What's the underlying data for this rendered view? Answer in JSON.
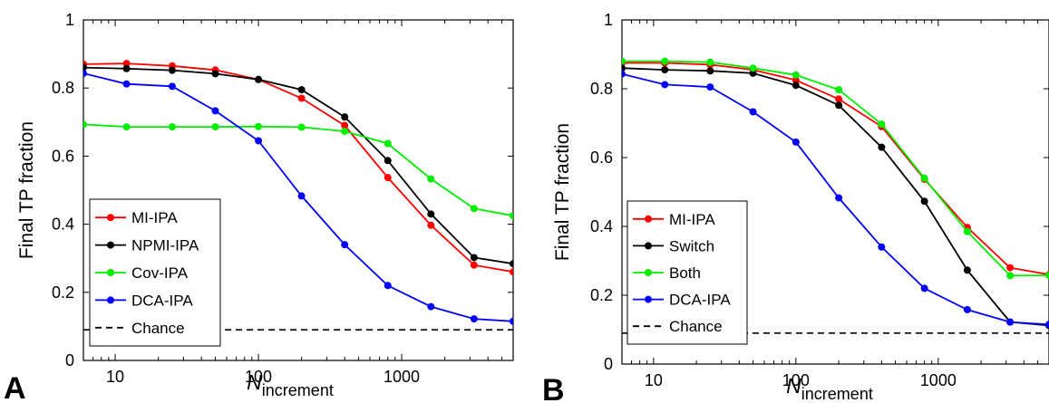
{
  "chart_data": [
    {
      "type": "line",
      "panel": "A",
      "xlabel": "N",
      "xlabel_sub": "increment",
      "ylabel": "Final TP fraction",
      "xscale": "log",
      "xlim": [
        6,
        6000
      ],
      "ylim": [
        0,
        1
      ],
      "xticks": [
        10,
        100,
        1000
      ],
      "xtick_labels": [
        "10",
        "100",
        "1000"
      ],
      "yticks": [
        0,
        0.2,
        0.4,
        0.6,
        0.8,
        1
      ],
      "ytick_labels": [
        "0",
        "0.2",
        "0.4",
        "0.6",
        "0.8",
        "1"
      ],
      "legend_position": "bottom-left",
      "x": [
        6,
        12,
        25,
        50,
        100,
        200,
        400,
        800,
        1600,
        3200,
        6000
      ],
      "series": [
        {
          "name": "MI-IPA",
          "color": "#ff0000",
          "values": [
            0.87,
            0.872,
            0.865,
            0.853,
            0.825,
            0.77,
            0.69,
            0.537,
            0.397,
            0.28,
            0.26
          ]
        },
        {
          "name": "NPMI-IPA",
          "color": "#000000",
          "values": [
            0.86,
            0.857,
            0.852,
            0.842,
            0.825,
            0.795,
            0.715,
            0.587,
            0.43,
            0.302,
            0.284
          ]
        },
        {
          "name": "Cov-IPA",
          "color": "#00ee00",
          "values": [
            0.693,
            0.686,
            0.686,
            0.686,
            0.687,
            0.685,
            0.673,
            0.637,
            0.533,
            0.446,
            0.425
          ]
        },
        {
          "name": "DCA-IPA",
          "color": "#0000ff",
          "values": [
            0.843,
            0.812,
            0.805,
            0.733,
            0.645,
            0.483,
            0.34,
            0.22,
            0.158,
            0.122,
            0.115
          ]
        }
      ],
      "reference_lines": [
        {
          "name": "Chance",
          "y": 0.09,
          "color": "#000000",
          "style": "dashed"
        }
      ]
    },
    {
      "type": "line",
      "panel": "B",
      "xlabel": "N",
      "xlabel_sub": "increment",
      "ylabel": "Final TP fraction",
      "xscale": "log",
      "xlim": [
        6,
        6000
      ],
      "ylim": [
        0,
        1
      ],
      "xticks": [
        10,
        100,
        1000
      ],
      "xtick_labels": [
        "10",
        "100",
        "1000"
      ],
      "yticks": [
        0,
        0.2,
        0.4,
        0.6,
        0.8,
        1
      ],
      "ytick_labels": [
        "0",
        "0.2",
        "0.4",
        "0.6",
        "0.8",
        "1"
      ],
      "legend_position": "bottom-left",
      "x": [
        6,
        12,
        25,
        50,
        100,
        200,
        400,
        800,
        1600,
        3200,
        6000
      ],
      "series": [
        {
          "name": "MI-IPA",
          "color": "#ff0000",
          "values": [
            0.875,
            0.875,
            0.87,
            0.855,
            0.825,
            0.77,
            0.69,
            0.537,
            0.397,
            0.28,
            0.26
          ]
        },
        {
          "name": "Switch",
          "color": "#000000",
          "values": [
            0.86,
            0.855,
            0.852,
            0.845,
            0.81,
            0.752,
            0.63,
            0.473,
            0.273,
            0.122,
            0.112
          ]
        },
        {
          "name": "Both",
          "color": "#00ee00",
          "values": [
            0.88,
            0.88,
            0.877,
            0.86,
            0.84,
            0.797,
            0.697,
            0.54,
            0.385,
            0.257,
            0.258
          ]
        },
        {
          "name": "DCA-IPA",
          "color": "#0000ff",
          "values": [
            0.843,
            0.812,
            0.805,
            0.733,
            0.645,
            0.483,
            0.34,
            0.22,
            0.158,
            0.122,
            0.115
          ]
        }
      ],
      "reference_lines": [
        {
          "name": "Chance",
          "y": 0.09,
          "color": "#000000",
          "style": "dashed"
        }
      ]
    }
  ]
}
